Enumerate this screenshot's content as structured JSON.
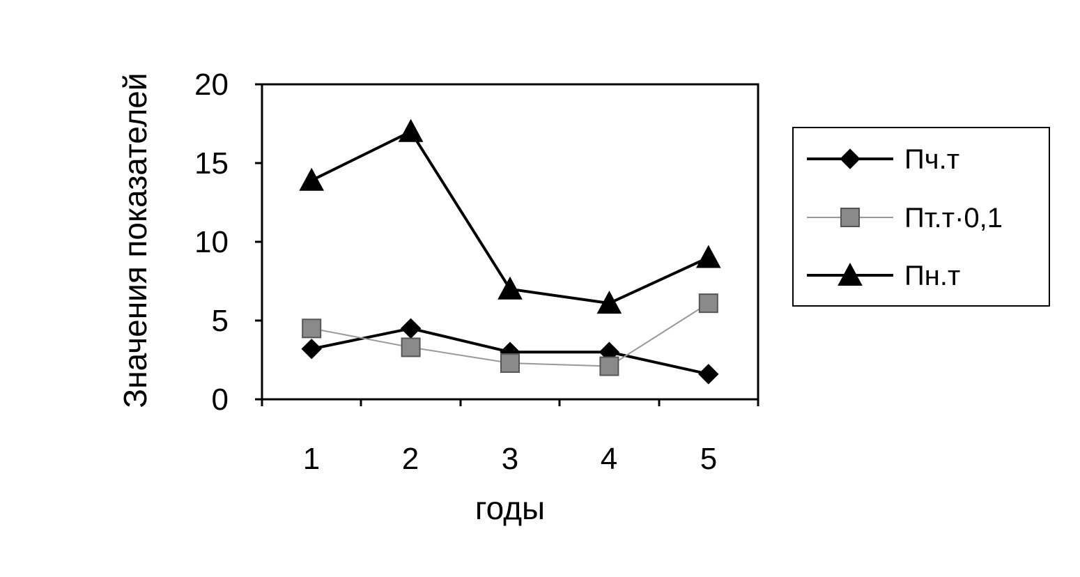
{
  "chart_data": {
    "type": "line",
    "title": "",
    "xlabel": "годы",
    "ylabel": "Значения показателей",
    "categories": [
      "1",
      "2",
      "3",
      "4",
      "5"
    ],
    "ylim": [
      0,
      20
    ],
    "yticks": [
      "0",
      "5",
      "10",
      "15",
      "20"
    ],
    "grid": false,
    "legend_position": "right",
    "series": [
      {
        "name": "Пч.т",
        "values": [
          3.2,
          4.5,
          3.0,
          3.0,
          1.6
        ],
        "marker": "diamond",
        "color": "#000000",
        "line_style": "solid-thick"
      },
      {
        "name": "Пт.т·0,1",
        "values": [
          4.5,
          3.3,
          2.3,
          2.1,
          6.1
        ],
        "marker": "square",
        "color": "#777777",
        "line_style": "thin-gray"
      },
      {
        "name": "Пн.т",
        "values": [
          13.9,
          17.0,
          7.0,
          6.1,
          9.0
        ],
        "marker": "triangle",
        "color": "#000000",
        "line_style": "solid-thick"
      }
    ]
  }
}
